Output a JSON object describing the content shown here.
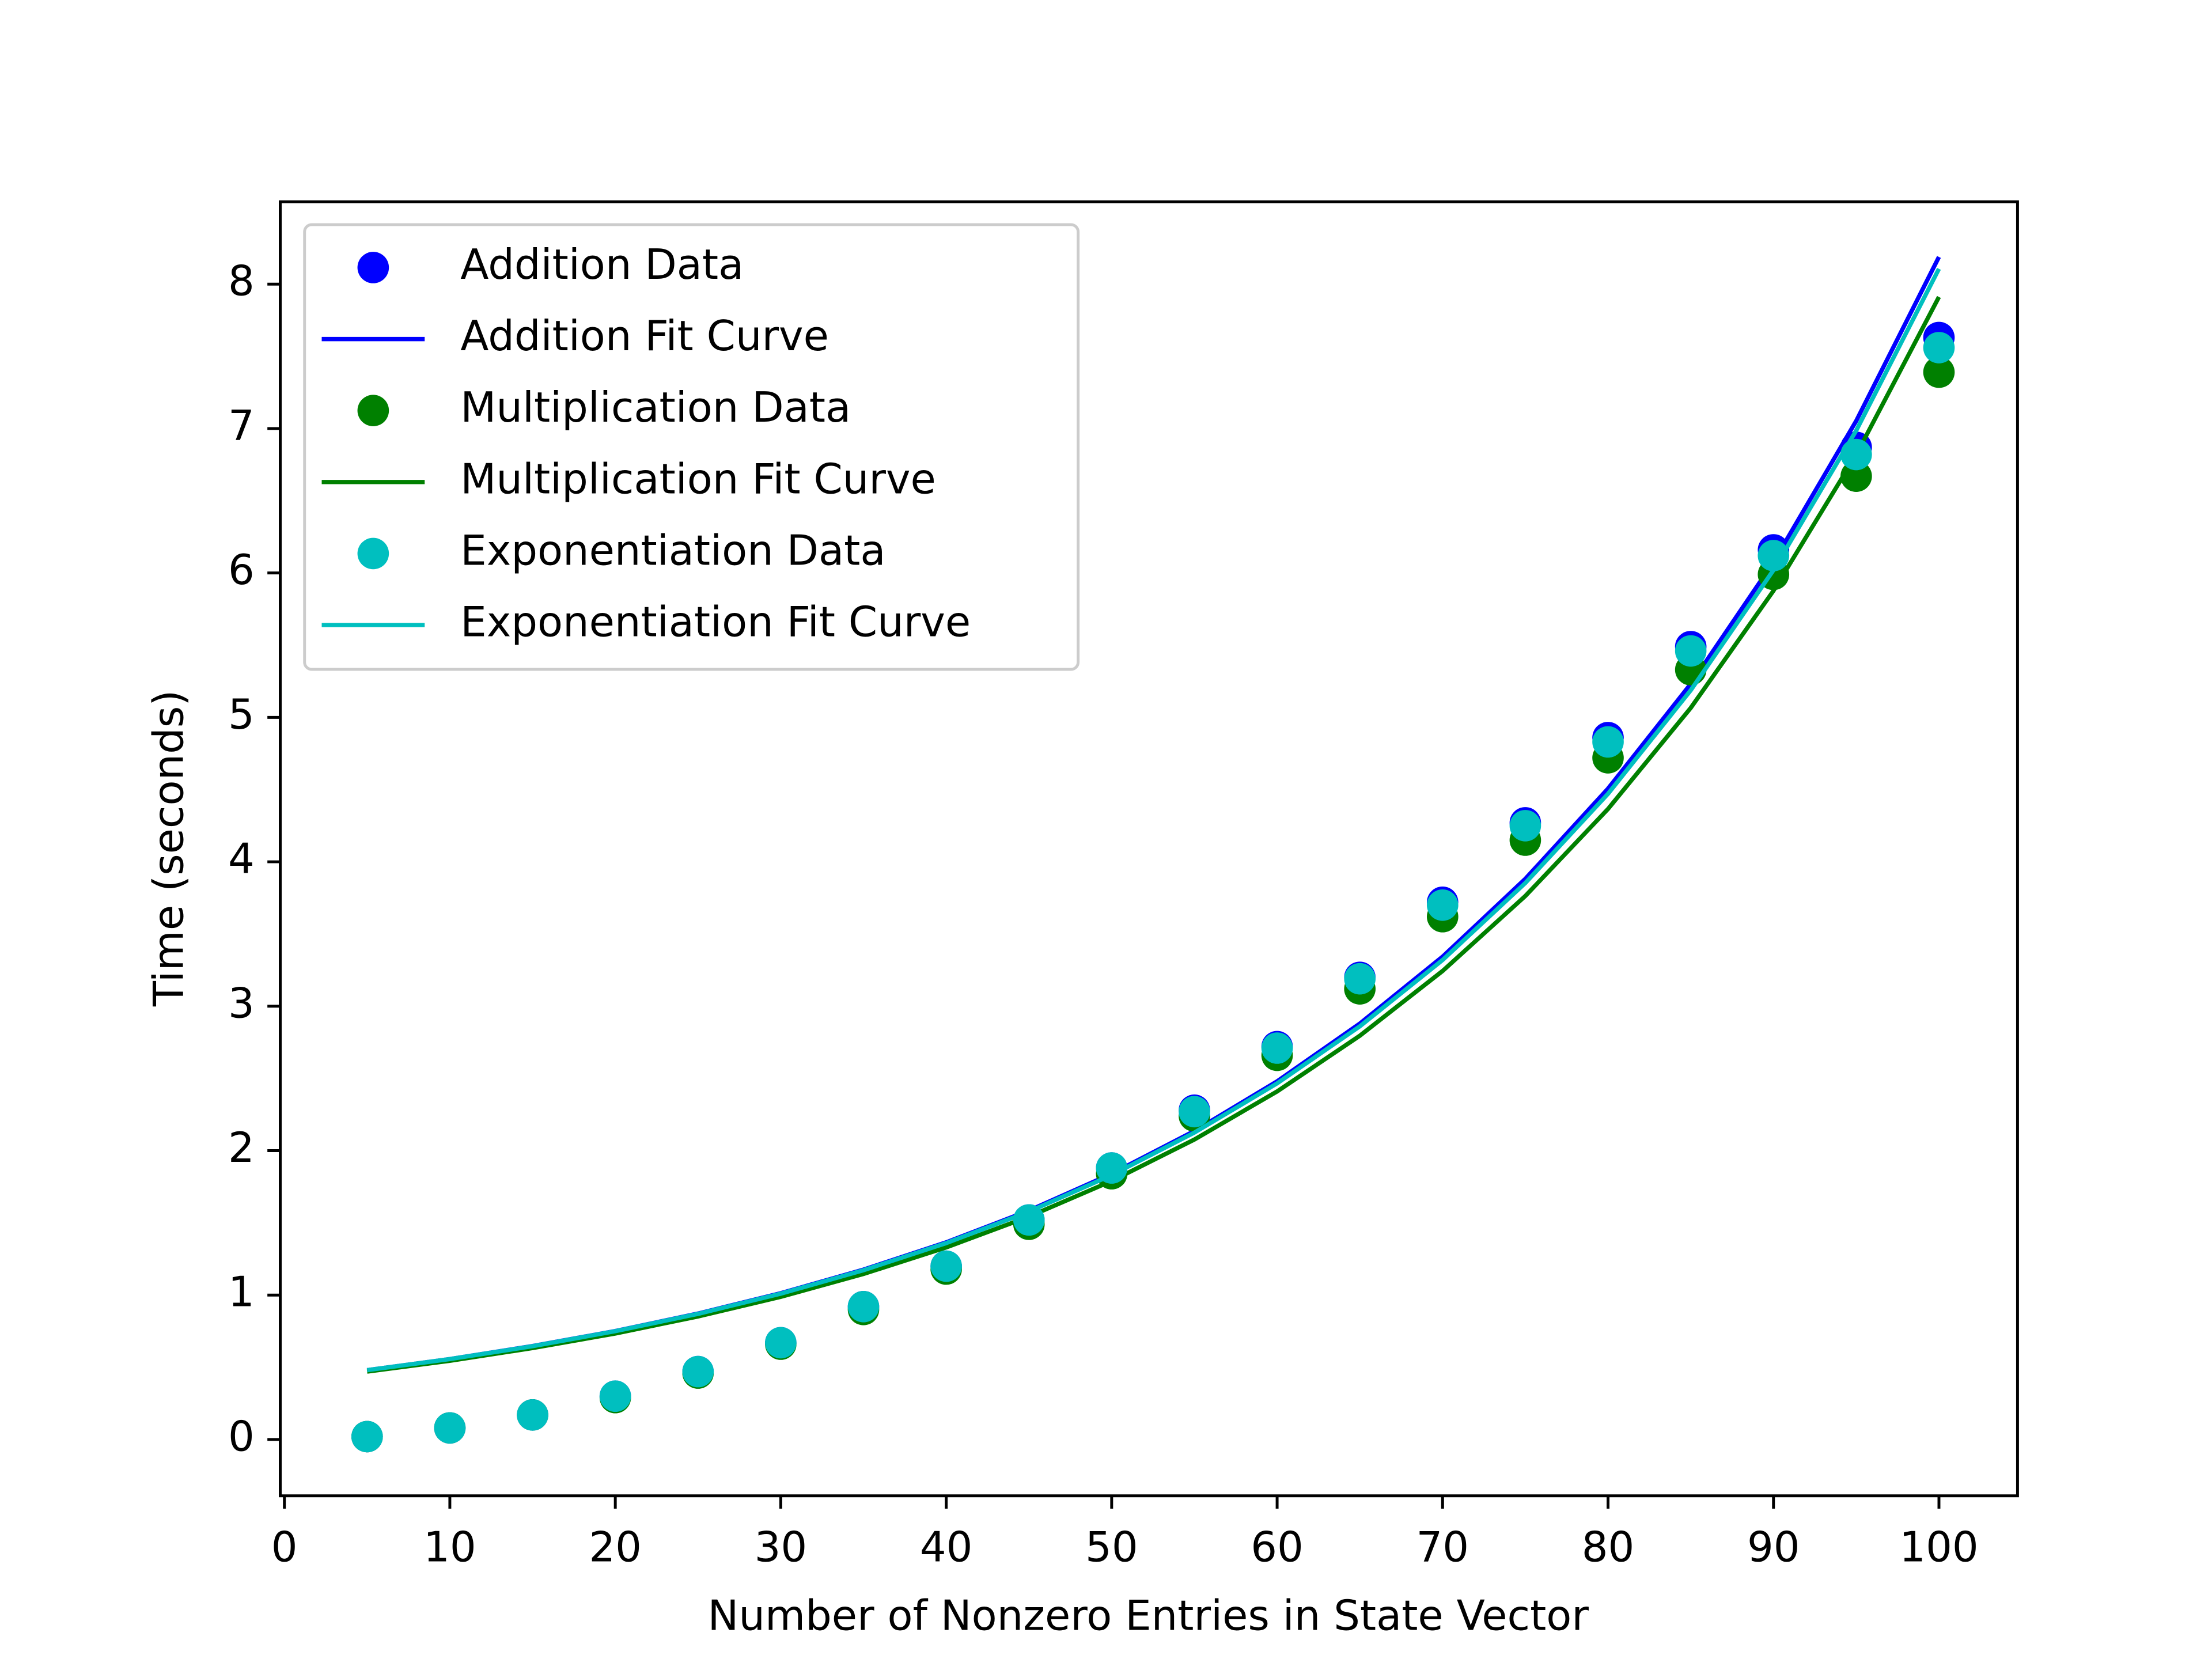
{
  "chart_data": {
    "type": "scatter",
    "x_label": "Number of Nonzero Entries in State Vector",
    "y_label": "Time (seconds)",
    "x": [
      5,
      10,
      15,
      20,
      25,
      30,
      35,
      40,
      45,
      50,
      55,
      60,
      65,
      70,
      75,
      80,
      85,
      90,
      95,
      100
    ],
    "series": [
      {
        "name": "Addition Data",
        "color": "#0000ff",
        "mode": "markers",
        "values": [
          0.02,
          0.08,
          0.17,
          0.3,
          0.47,
          0.67,
          0.92,
          1.2,
          1.52,
          1.88,
          2.28,
          2.72,
          3.2,
          3.72,
          4.27,
          4.86,
          5.49,
          6.16,
          6.87,
          7.63
        ]
      },
      {
        "name": "Addition Fit Curve",
        "color": "#0000ff",
        "mode": "line",
        "values": [
          0.48,
          0.557,
          0.647,
          0.751,
          0.872,
          1.013,
          1.176,
          1.365,
          1.585,
          1.84,
          2.136,
          2.48,
          2.88,
          3.343,
          3.882,
          4.507,
          5.232,
          6.075,
          7.053,
          8.188
        ]
      },
      {
        "name": "Multiplication Data",
        "color": "#008000",
        "mode": "markers",
        "values": [
          0.02,
          0.08,
          0.17,
          0.29,
          0.46,
          0.66,
          0.9,
          1.18,
          1.49,
          1.84,
          2.24,
          2.66,
          3.12,
          3.62,
          4.15,
          4.72,
          5.33,
          5.99,
          6.67,
          7.39
        ]
      },
      {
        "name": "Multiplication Fit Curve",
        "color": "#008000",
        "mode": "line",
        "values": [
          0.47,
          0.545,
          0.633,
          0.734,
          0.852,
          0.988,
          1.146,
          1.33,
          1.543,
          1.79,
          2.077,
          2.41,
          2.796,
          3.244,
          3.763,
          4.366,
          5.066,
          5.877,
          6.819,
          7.911
        ]
      },
      {
        "name": "Exponentiation Data",
        "color": "#00bfbf",
        "mode": "markers",
        "values": [
          0.02,
          0.08,
          0.17,
          0.3,
          0.47,
          0.67,
          0.92,
          1.2,
          1.52,
          1.88,
          2.27,
          2.71,
          3.19,
          3.7,
          4.25,
          4.83,
          5.46,
          6.12,
          6.82,
          7.56
        ]
      },
      {
        "name": "Exponentiation Fit Curve",
        "color": "#00bfbf",
        "mode": "line",
        "values": [
          0.48,
          0.557,
          0.646,
          0.75,
          0.87,
          1.01,
          1.172,
          1.36,
          1.578,
          1.831,
          2.125,
          2.466,
          2.861,
          3.32,
          3.853,
          4.471,
          5.188,
          6.02,
          6.986,
          8.106
        ]
      }
    ],
    "xlim": [
      -0.25,
      104.75
    ],
    "ylim": [
      -0.39,
      8.57
    ],
    "xticks": [
      0,
      10,
      20,
      30,
      40,
      50,
      60,
      70,
      80,
      90,
      100
    ],
    "yticks": [
      0,
      1,
      2,
      3,
      4,
      5,
      6,
      7,
      8
    ],
    "grid": false,
    "legend": "upper left"
  }
}
